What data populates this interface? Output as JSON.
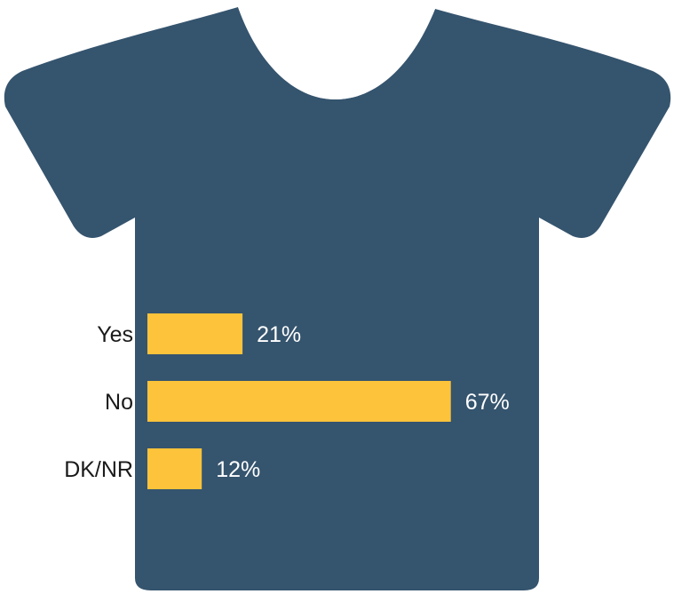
{
  "colors": {
    "shirt": "#35546e",
    "collar": "#ffffff",
    "bar": "#fdc33a",
    "category_text": "#1a1a1a",
    "value_text": "#ffffff"
  },
  "icon": "t-shirt-icon",
  "chart_data": {
    "type": "bar",
    "orientation": "horizontal",
    "categories": [
      "Yes",
      "No",
      "DK/NR"
    ],
    "values": [
      21,
      67,
      12
    ],
    "value_labels": [
      "21%",
      "67%",
      "12%"
    ],
    "unit": "%",
    "xlim": [
      0,
      100
    ],
    "title": "",
    "xlabel": "",
    "ylabel": "",
    "grid": false,
    "legend": "none"
  }
}
